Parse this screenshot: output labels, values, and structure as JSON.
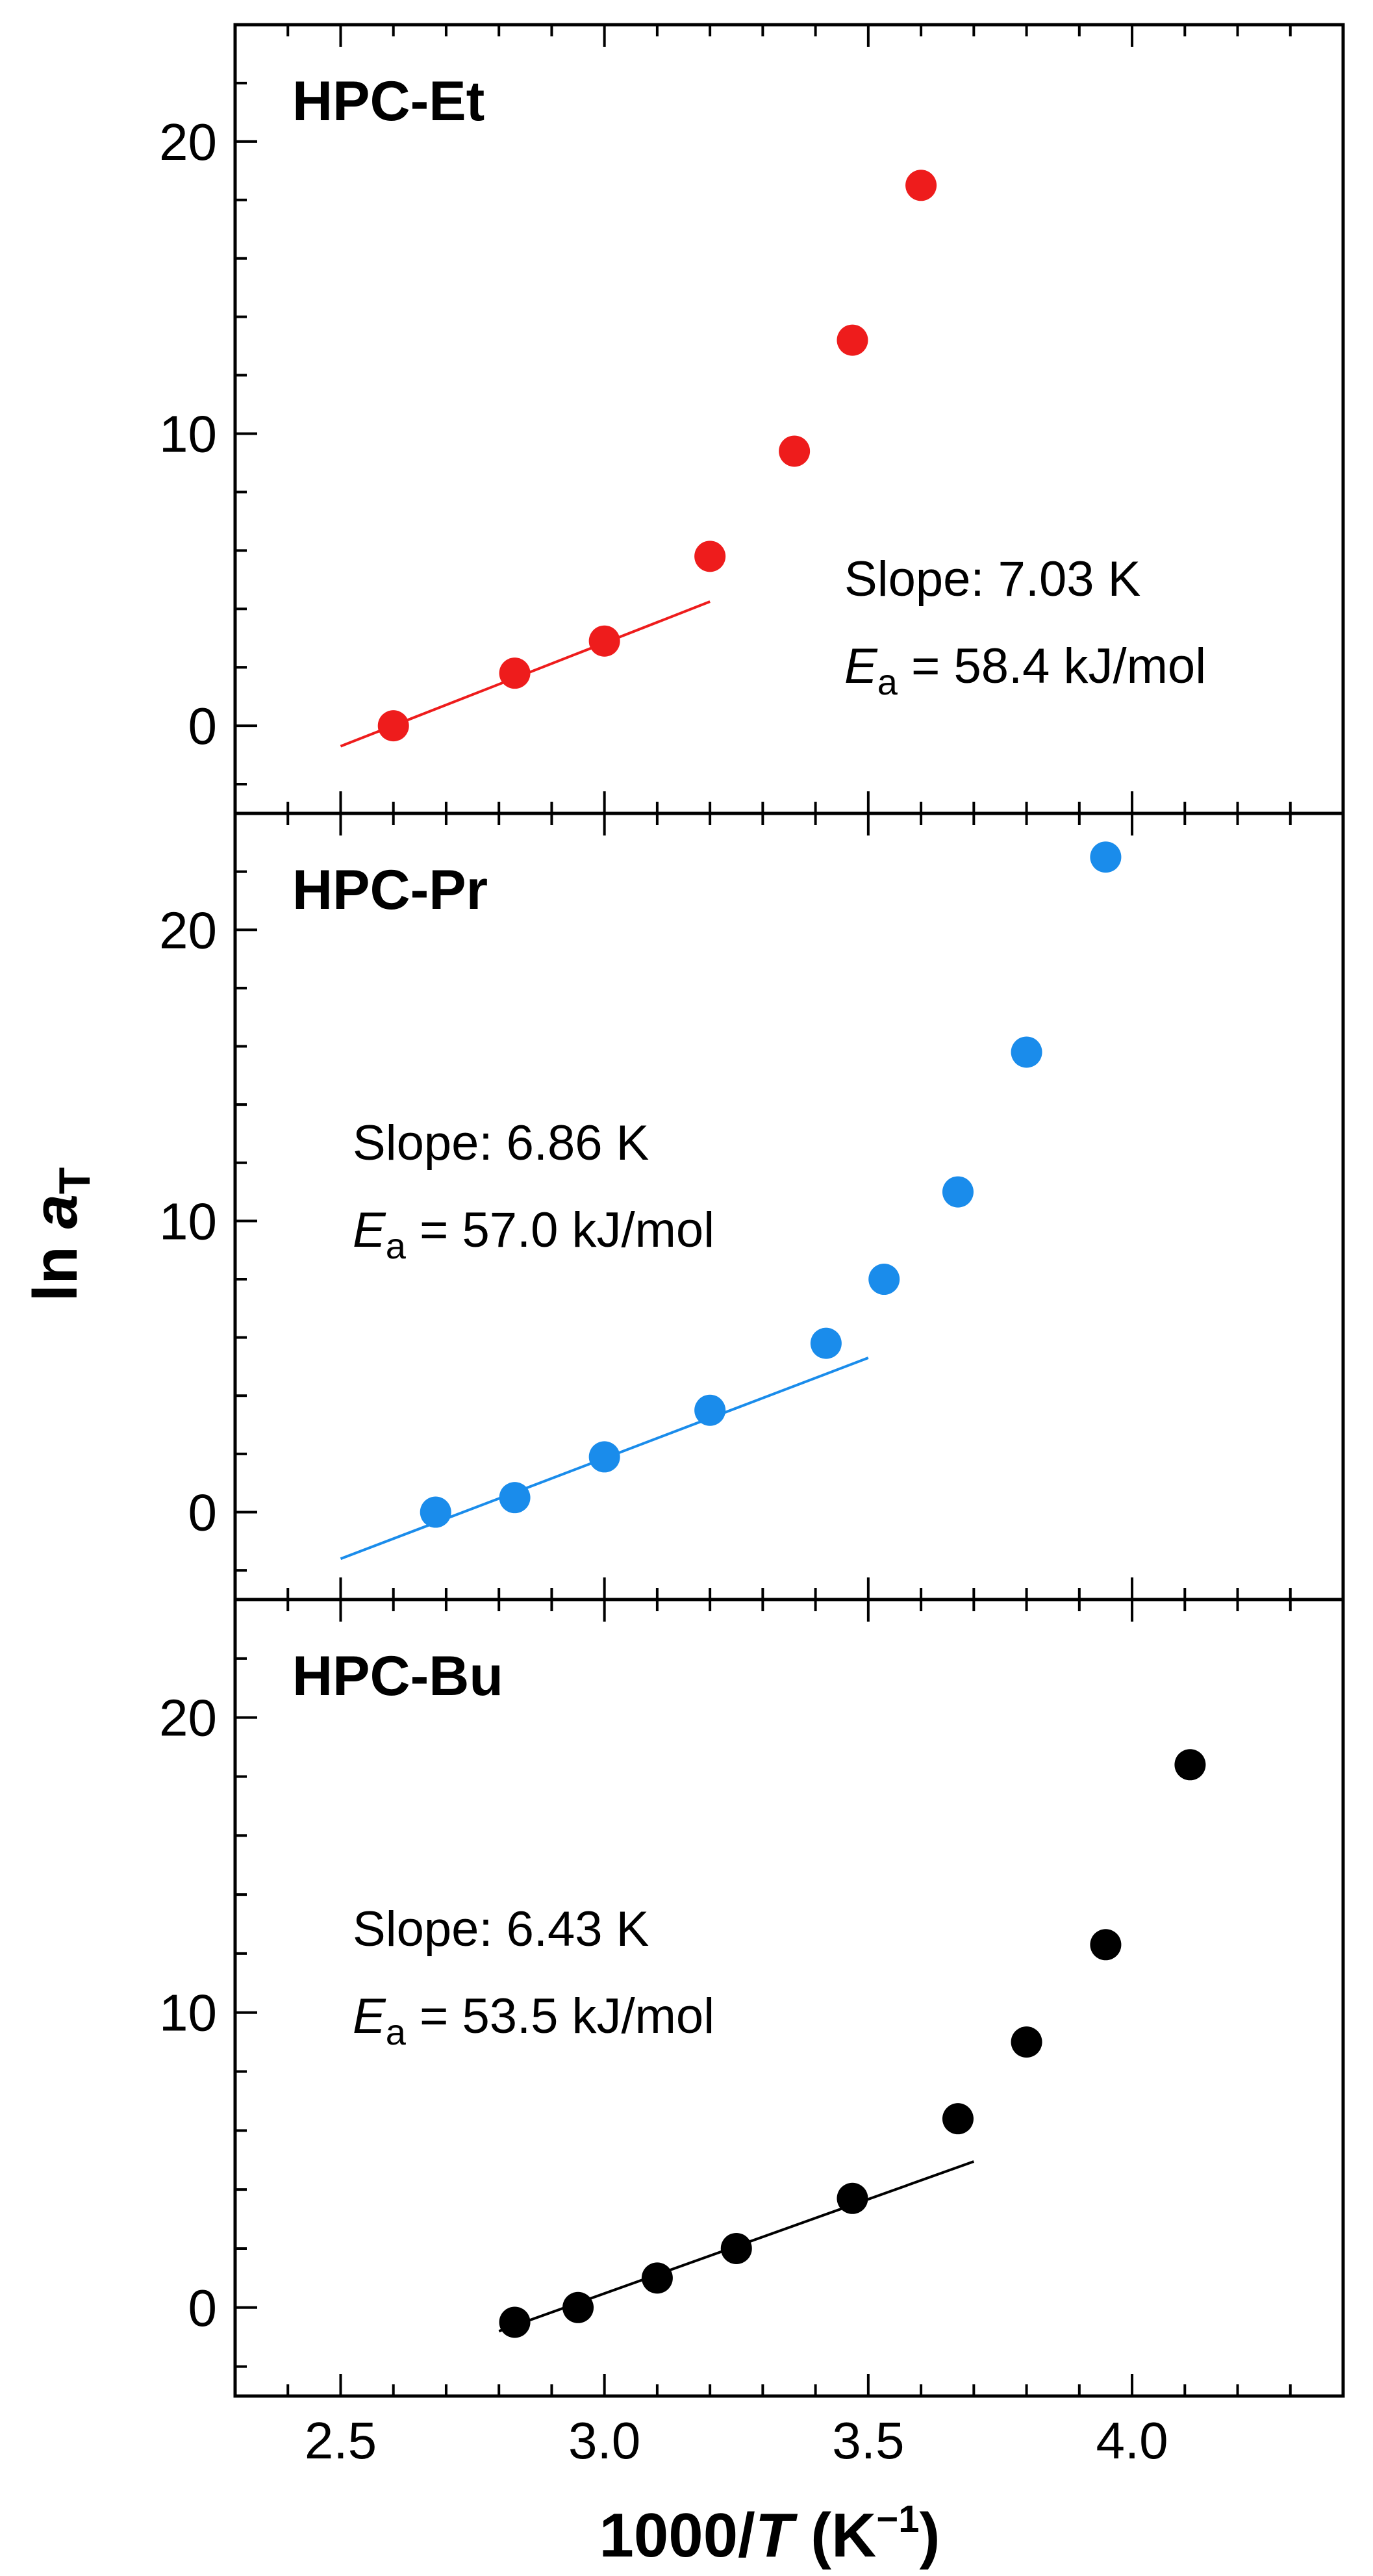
{
  "chart_data": {
    "type": "scatter",
    "xlabel": {
      "prefix": "1000/",
      "var": "T",
      "unit_open": " (K",
      "unit_sup": "−1",
      "unit_close": ")"
    },
    "ylabel": {
      "prefix": "ln ",
      "var": "a",
      "sub": "T"
    },
    "xlim": [
      2.3,
      4.4
    ],
    "xticks": [
      2.5,
      3.0,
      3.5,
      4.0
    ],
    "xtick_labels": [
      "2.5",
      "3.0",
      "3.5",
      "4.0"
    ],
    "xtick_minor_step": 0.1,
    "ylim": [
      -3,
      24
    ],
    "yticks": [
      0,
      10,
      20
    ],
    "ytick_labels": [
      "0",
      "10",
      "20"
    ],
    "ytick_minor_step": 2,
    "panels": [
      {
        "name": "HPC-Et",
        "label": "HPC-Et",
        "color": "#ee1c1c",
        "x": [
          2.6,
          2.83,
          3.0,
          3.2,
          3.36,
          3.47,
          3.6
        ],
        "y": [
          0.0,
          1.8,
          2.9,
          5.8,
          9.4,
          13.2,
          18.5
        ],
        "fit": {
          "x": [
            2.5,
            3.2
          ],
          "y": [
            -0.7,
            4.25
          ]
        },
        "slope_label": "Slope: 7.03 K",
        "ea": {
          "var": "E",
          "sub": "a",
          "text": " = 58.4 kJ/mol"
        },
        "annotation_anchor": "right"
      },
      {
        "name": "HPC-Pr",
        "label": "HPC-Pr",
        "color": "#1a8ceb",
        "x": [
          2.68,
          2.83,
          3.0,
          3.2,
          3.42,
          3.53,
          3.67,
          3.8,
          3.95
        ],
        "y": [
          0.0,
          0.5,
          1.9,
          3.5,
          5.8,
          8.0,
          11.0,
          15.8,
          22.5
        ],
        "fit": {
          "x": [
            2.5,
            3.5
          ],
          "y": [
            -1.6,
            5.3
          ]
        },
        "slope_label": "Slope: 6.86 K",
        "ea": {
          "var": "E",
          "sub": "a",
          "text": " = 57.0 kJ/mol"
        },
        "annotation_anchor": "left"
      },
      {
        "name": "HPC-Bu",
        "label": "HPC-Bu",
        "color": "#000000",
        "x": [
          2.83,
          2.95,
          3.1,
          3.25,
          3.47,
          3.67,
          3.8,
          3.95,
          4.11
        ],
        "y": [
          -0.5,
          0.0,
          1.0,
          2.0,
          3.7,
          6.4,
          9.0,
          12.3,
          18.4
        ],
        "fit": {
          "x": [
            2.8,
            3.7
          ],
          "y": [
            -0.8,
            4.95
          ]
        },
        "slope_label": "Slope: 6.43 K",
        "ea": {
          "var": "E",
          "sub": "a",
          "text": " = 53.5 kJ/mol"
        },
        "annotation_anchor": "left"
      }
    ]
  }
}
